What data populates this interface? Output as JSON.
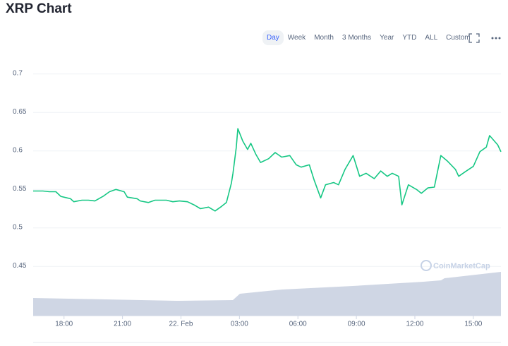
{
  "toolbar": {
    "tabs": [
      "Day",
      "Week",
      "Month",
      "3 Months",
      "Year",
      "YTD",
      "ALL",
      "Custom"
    ],
    "active": 0
  },
  "chart_data": {
    "type": "line",
    "title": "XRP Chart",
    "watermark": "CoinMarketCap",
    "x": [
      985,
      1015,
      1035,
      1055,
      1070,
      1090,
      1100,
      1110,
      1135,
      1155,
      1175,
      1200,
      1220,
      1240,
      1265,
      1275,
      1305,
      1315,
      1340,
      1360,
      1395,
      1415,
      1435,
      1460,
      1480,
      1500,
      1525,
      1545,
      1565,
      1580,
      1595,
      1600,
      1610,
      1615,
      1630,
      1645,
      1655,
      1670,
      1685,
      1710,
      1730,
      1750,
      1775,
      1795,
      1810,
      1835,
      1850,
      1870,
      1885,
      1910,
      1925,
      1945,
      1970,
      1990,
      2010,
      2035,
      2055,
      2075,
      2090,
      2110,
      2120,
      2140,
      2165,
      2180,
      2200,
      2220,
      2240,
      2260,
      2285,
      2295,
      2315,
      2340,
      2360,
      2380,
      2390,
      2415,
      2425
    ],
    "series": [
      {
        "color": "#16c784",
        "values": [
          0.548,
          0.548,
          0.547,
          0.547,
          0.541,
          0.539,
          0.538,
          0.534,
          0.536,
          0.536,
          0.535,
          0.541,
          0.547,
          0.55,
          0.547,
          0.54,
          0.538,
          0.535,
          0.533,
          0.536,
          0.536,
          0.534,
          0.535,
          0.534,
          0.53,
          0.525,
          0.527,
          0.522,
          0.528,
          0.533,
          0.558,
          0.571,
          0.604,
          0.629,
          0.613,
          0.602,
          0.61,
          0.596,
          0.585,
          0.59,
          0.598,
          0.592,
          0.594,
          0.582,
          0.579,
          0.582,
          0.562,
          0.539,
          0.556,
          0.559,
          0.556,
          0.576,
          0.594,
          0.567,
          0.571,
          0.564,
          0.574,
          0.567,
          0.571,
          0.567,
          0.53,
          0.556,
          0.55,
          0.545,
          0.552,
          0.553,
          0.594,
          0.587,
          0.576,
          0.567,
          0.573,
          0.58,
          0.599,
          0.605,
          0.62,
          0.608,
          0.599
        ]
      }
    ],
    "xlim": [
      985,
      2425
    ],
    "xticks": [
      {
        "value": 1080,
        "label": "18:00"
      },
      {
        "value": 1260,
        "label": "21:00"
      },
      {
        "value": 1440,
        "label": "22. Feb"
      },
      {
        "value": 1620,
        "label": "03:00"
      },
      {
        "value": 1800,
        "label": "06:00"
      },
      {
        "value": 1980,
        "label": "09:00"
      },
      {
        "value": 2160,
        "label": "12:00"
      },
      {
        "value": 2340,
        "label": "15:00"
      }
    ],
    "ylim": [
      0.386,
      0.709
    ],
    "yticks": [
      0.45,
      0.5,
      0.55,
      0.6,
      0.65,
      0.7
    ],
    "grid": true
  }
}
